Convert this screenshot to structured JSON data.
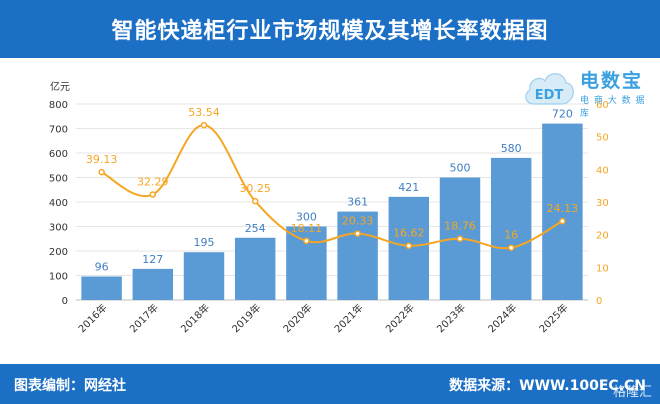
{
  "header": {
    "title": "智能快递柜行业市场规模及其增长率数据图"
  },
  "logo": {
    "brand": "电数宝",
    "badge": "EDT",
    "tagline": "电 商 大 数 据 库"
  },
  "footer": {
    "left": "图表编制：网经社",
    "right": "数据来源：WWW.100EC.CN"
  },
  "watermark": "格隆汇",
  "chart_data": {
    "type": "bar",
    "title": "智能快递柜行业市场规模及其增长率数据图",
    "categories": [
      "2016年",
      "2017年",
      "2018年",
      "2019年",
      "2020年",
      "2021年",
      "2022年",
      "2023年",
      "2024年",
      "2025年"
    ],
    "series": [
      {
        "values": [
          96,
          127,
          195,
          254,
          300,
          361,
          421,
          500,
          580,
          720
        ],
        "color": "#5b9bd5",
        "axis": "left"
      },
      {
        "values": [
          39.13,
          32.29,
          53.54,
          30.25,
          18.11,
          20.33,
          16.62,
          18.76,
          16,
          24.13
        ],
        "color": "#f5a623",
        "axis": "right",
        "type": "line"
      }
    ],
    "ylabel": "亿元",
    "ylim": [
      0,
      800
    ],
    "yticks": [
      0,
      100,
      200,
      300,
      400,
      500,
      600,
      700,
      800
    ],
    "y2lim": [
      0,
      60
    ],
    "y2ticks": [
      0,
      10,
      20,
      30,
      40,
      50,
      60
    ],
    "grid": true
  }
}
